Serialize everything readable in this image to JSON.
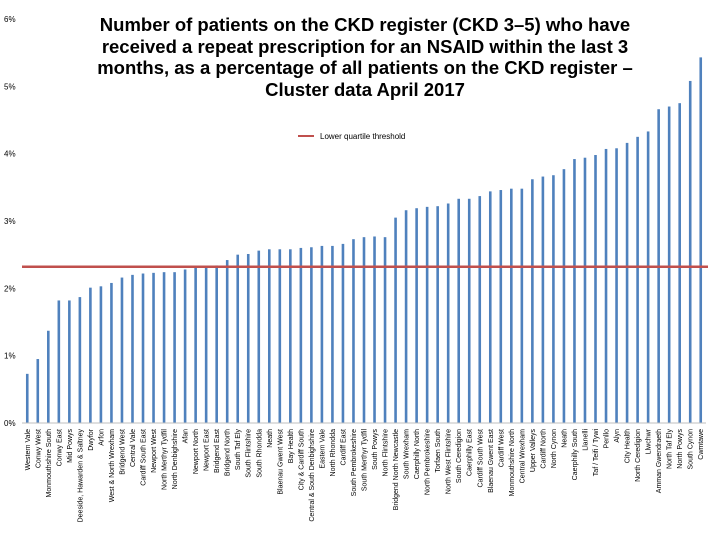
{
  "chart_data": {
    "type": "bar",
    "title": "Number of patients on the CKD register (CKD 3–5) who have received a repeat prescription for an NSAID within the last 3 months, as a percentage of all patients on the CKD register – Cluster data April 2017",
    "xlabel": "",
    "ylabel": "",
    "ylim": [
      0,
      6
    ],
    "yticks": [
      "0%",
      "1%",
      "2%",
      "3%",
      "4%",
      "5%",
      "6%"
    ],
    "grid": false,
    "legend_position": "top-center",
    "bar_color": "#4f81bd",
    "threshold": {
      "name": "Lower quartile threshold",
      "value": 2.32,
      "color": "#c0504d"
    },
    "categories": [
      "Western Vale",
      "Conwy West",
      "Monmouthshire South",
      "Conwy East",
      "Mid Powys",
      "Deeside, Hawarden & Saltney",
      "Dwyfor",
      "Arfon",
      "West & North Wrexham",
      "Bridgend West",
      "Central Vale",
      "Cardiff South East",
      "Newport West",
      "North Merthyr Tydfil",
      "North Denbighshire",
      "Afan",
      "Newport North",
      "Newport East",
      "Bridgend East",
      "Bridgend North",
      "South Taf Ely",
      "South Flintshire",
      "South Rhondda",
      "Neath",
      "Blaenau Gwent West",
      "Bay Health",
      "City & Cardiff South",
      "Central & South Denbighshire",
      "Eastern Vale",
      "North Rhondda",
      "Cardiff East",
      "South Pembrokeshire",
      "South Merthyr Tydfil",
      "South Powys",
      "North Flintshire",
      "Bridgend North Newcastle",
      "South Wrexham",
      "Caerphilly North",
      "North Pembrokeshire",
      "Torfaen South",
      "North West Flintshire",
      "South Ceredigion",
      "Caerphilly East",
      "Cardiff South West",
      "Blaenau Gwent East",
      "Cardiff West",
      "Monmouthshire North",
      "Central Wrexham",
      "Upper Valleys",
      "Cardiff North",
      "North Cynon",
      "Neath",
      "Caerphilly South",
      "Llanelli",
      "Taf / Teifi / Tywi",
      "Penllo",
      "Alyn",
      "City Health",
      "North Ceredigion",
      "Llwchwr",
      "Amman Gwendraeth",
      "North Taf Ely",
      "North Powys",
      "South Cynon",
      "Cwmtawe"
    ],
    "values": [
      0.73,
      0.95,
      1.37,
      1.82,
      1.82,
      1.87,
      2.01,
      2.03,
      2.08,
      2.16,
      2.2,
      2.22,
      2.23,
      2.24,
      2.24,
      2.28,
      2.32,
      2.32,
      2.34,
      2.42,
      2.5,
      2.51,
      2.56,
      2.58,
      2.58,
      2.58,
      2.6,
      2.61,
      2.63,
      2.63,
      2.66,
      2.73,
      2.76,
      2.77,
      2.76,
      3.05,
      3.16,
      3.19,
      3.21,
      3.22,
      3.26,
      3.33,
      3.33,
      3.37,
      3.44,
      3.46,
      3.48,
      3.48,
      3.62,
      3.66,
      3.68,
      3.77,
      3.92,
      3.94,
      3.98,
      4.07,
      4.08,
      4.16,
      4.25,
      4.33,
      4.66,
      4.7,
      4.75,
      5.08,
      5.43
    ]
  }
}
